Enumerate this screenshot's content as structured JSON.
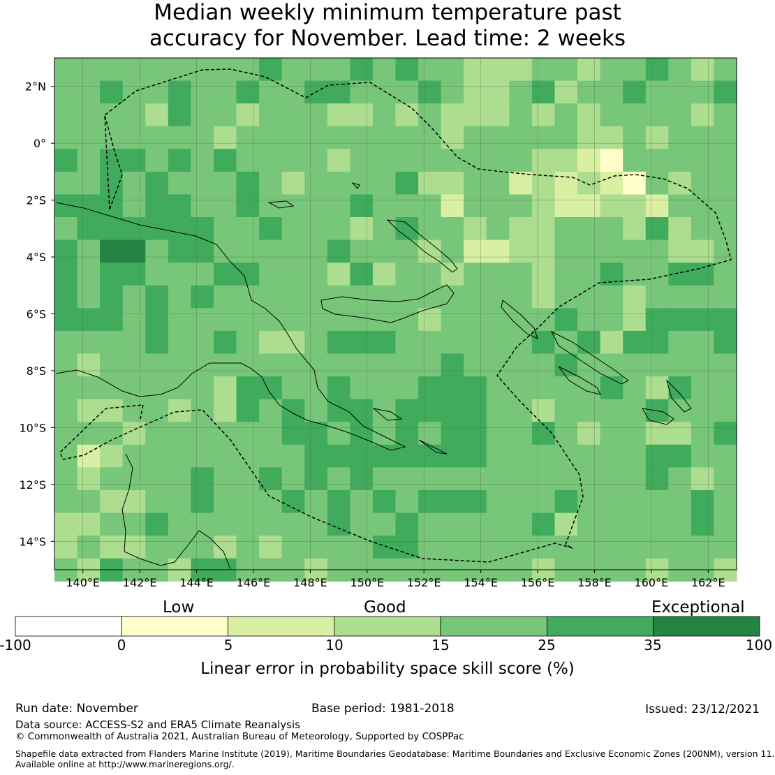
{
  "title": {
    "line1": "Median weekly minimum temperature past",
    "line2": "accuracy for November. Lead time: 2 weeks"
  },
  "map": {
    "lon_range": [
      139,
      163
    ],
    "lat_range": [
      -15,
      3
    ],
    "grid_res_deg": 0.8,
    "lon_ticks": [
      "140°E",
      "142°E",
      "144°E",
      "146°E",
      "148°E",
      "150°E",
      "152°E",
      "154°E",
      "156°E",
      "158°E",
      "160°E",
      "162°E"
    ],
    "lon_tick_values": [
      140,
      142,
      144,
      146,
      148,
      150,
      152,
      154,
      156,
      158,
      160,
      162
    ],
    "lat_ticks": [
      "2°N",
      "0°",
      "2°S",
      "4°S",
      "6°S",
      "8°S",
      "10°S",
      "12°S",
      "14°S"
    ],
    "lat_tick_values": [
      2,
      0,
      -2,
      -4,
      -6,
      -8,
      -10,
      -12,
      -14
    ]
  },
  "legend": {
    "category_labels": [
      "Low",
      "Good",
      "Exceptional"
    ],
    "bounds": [
      "-100",
      "0",
      "5",
      "10",
      "15",
      "25",
      "35",
      "100"
    ],
    "colors": [
      "#ffffff",
      "#ffffcc",
      "#d9f0a3",
      "#addd8e",
      "#78c679",
      "#41ab5d",
      "#238443"
    ],
    "axis_title": "Linear error in probability space skill score (%)"
  },
  "footer": {
    "run_date": "Run date: November",
    "base_period": "Base period: 1981-2018",
    "issued": "Issued: 23/12/2021",
    "data_source": "Data source: ACCESS-S2 and ERA5 Climate Reanalysis",
    "copyright": "© Commonwealth of Australia 2021, Australian Bureau of Meteorology, Supported by COSPPac",
    "shapefile_line1": "Shapefile data extracted from Flanders Marine Institute (2019), Maritime Boundaries Geodatabase: Maritime Boundaries and Exclusive Economic Zones (200NM), version 11.",
    "shapefile_line2": "Available online at http://www.marineregions.org/."
  }
}
